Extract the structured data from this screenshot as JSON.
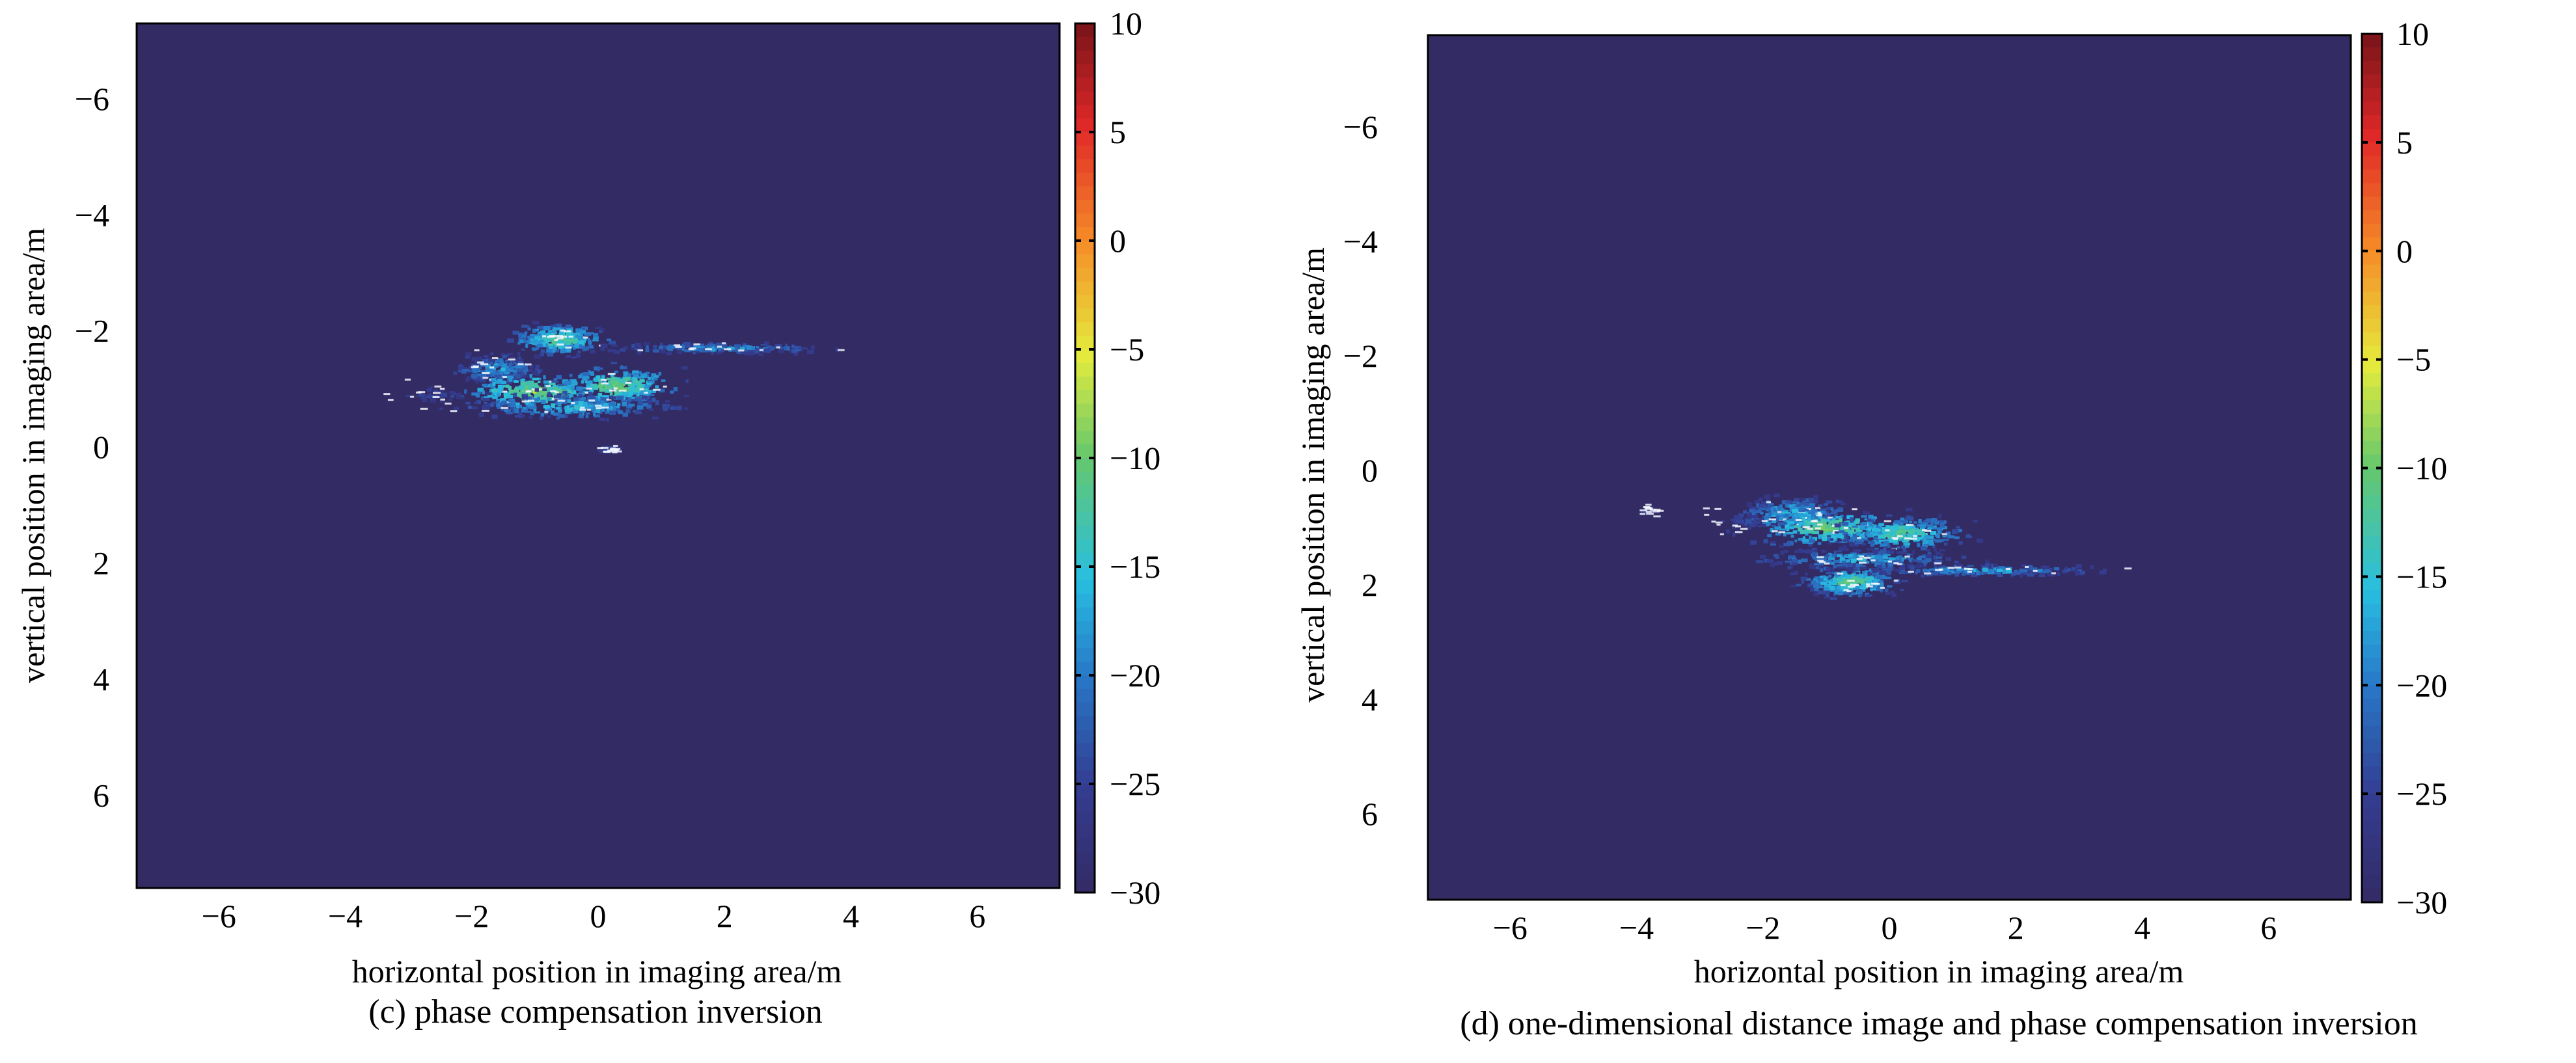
{
  "chart_data": [
    {
      "type": "heatmap",
      "caption": "(c) phase compensation inversion",
      "xlabel": "horizontal position in imaging area/m",
      "ylabel": "vertical position in imaging area/m",
      "xlim": [
        -7.3,
        7.3
      ],
      "ylim": [
        -7.3,
        7.6
      ],
      "y_reversed": true,
      "x_ticks": [
        -6,
        -4,
        -2,
        0,
        2,
        4,
        6
      ],
      "y_ticks": [
        -6,
        -4,
        -2,
        0,
        2,
        4,
        6
      ],
      "colorbar": {
        "min": -30,
        "max": 10,
        "ticks": [
          10,
          5,
          0,
          -5,
          -10,
          -15,
          -20,
          -25,
          -30
        ],
        "colormap": "jet"
      },
      "background_value": -30,
      "grid": false,
      "hotspots": [
        {
          "x": -0.6,
          "y": -1.85,
          "sx": 0.35,
          "sy": 0.12,
          "v": -8
        },
        {
          "x": -1.6,
          "y": -1.35,
          "sx": 0.4,
          "sy": 0.15,
          "v": -14
        },
        {
          "x": -1.0,
          "y": -0.95,
          "sx": 0.5,
          "sy": 0.15,
          "v": -6
        },
        {
          "x": 0.3,
          "y": -1.05,
          "sx": 0.45,
          "sy": 0.15,
          "v": -7
        },
        {
          "x": -0.4,
          "y": -0.7,
          "sx": 0.9,
          "sy": 0.12,
          "v": -12
        },
        {
          "x": 1.9,
          "y": -1.7,
          "sx": 1.1,
          "sy": 0.06,
          "v": -15
        },
        {
          "x": -2.6,
          "y": -0.9,
          "sx": 0.6,
          "sy": 0.18,
          "v": -22
        },
        {
          "x": 0.2,
          "y": 0.05,
          "sx": 0.15,
          "sy": 0.05,
          "v": -20
        }
      ]
    },
    {
      "type": "heatmap",
      "caption": "(d) one-dimensional distance image and phase compensation inversion",
      "xlabel": "horizontal position in imaging area/m",
      "ylabel": "vertical position in imaging area/m",
      "xlim": [
        -7.3,
        7.3
      ],
      "ylim": [
        -7.6,
        7.5
      ],
      "y_reversed": true,
      "x_ticks": [
        -6,
        -4,
        -2,
        0,
        2,
        4,
        6
      ],
      "y_ticks": [
        -6,
        -4,
        -2,
        0,
        2,
        4,
        6
      ],
      "colorbar": {
        "min": -30,
        "max": 10,
        "ticks": [
          10,
          5,
          0,
          -5,
          -10,
          -15,
          -20,
          -25,
          -30
        ],
        "colormap": "jet"
      },
      "background_value": -30,
      "grid": false,
      "hotspots": [
        {
          "x": -0.6,
          "y": 1.95,
          "sx": 0.35,
          "sy": 0.12,
          "v": -8
        },
        {
          "x": -1.5,
          "y": 0.75,
          "sx": 0.45,
          "sy": 0.15,
          "v": -12
        },
        {
          "x": -1.0,
          "y": 1.0,
          "sx": 0.55,
          "sy": 0.15,
          "v": -7
        },
        {
          "x": 0.2,
          "y": 1.1,
          "sx": 0.5,
          "sy": 0.15,
          "v": -9
        },
        {
          "x": -0.5,
          "y": 1.55,
          "sx": 0.9,
          "sy": 0.1,
          "v": -13
        },
        {
          "x": 1.5,
          "y": 1.75,
          "sx": 1.1,
          "sy": 0.06,
          "v": -14
        },
        {
          "x": -2.3,
          "y": 0.9,
          "sx": 0.6,
          "sy": 0.18,
          "v": -22
        },
        {
          "x": -3.8,
          "y": 0.7,
          "sx": 0.1,
          "sy": 0.06,
          "v": -22
        }
      ]
    }
  ]
}
